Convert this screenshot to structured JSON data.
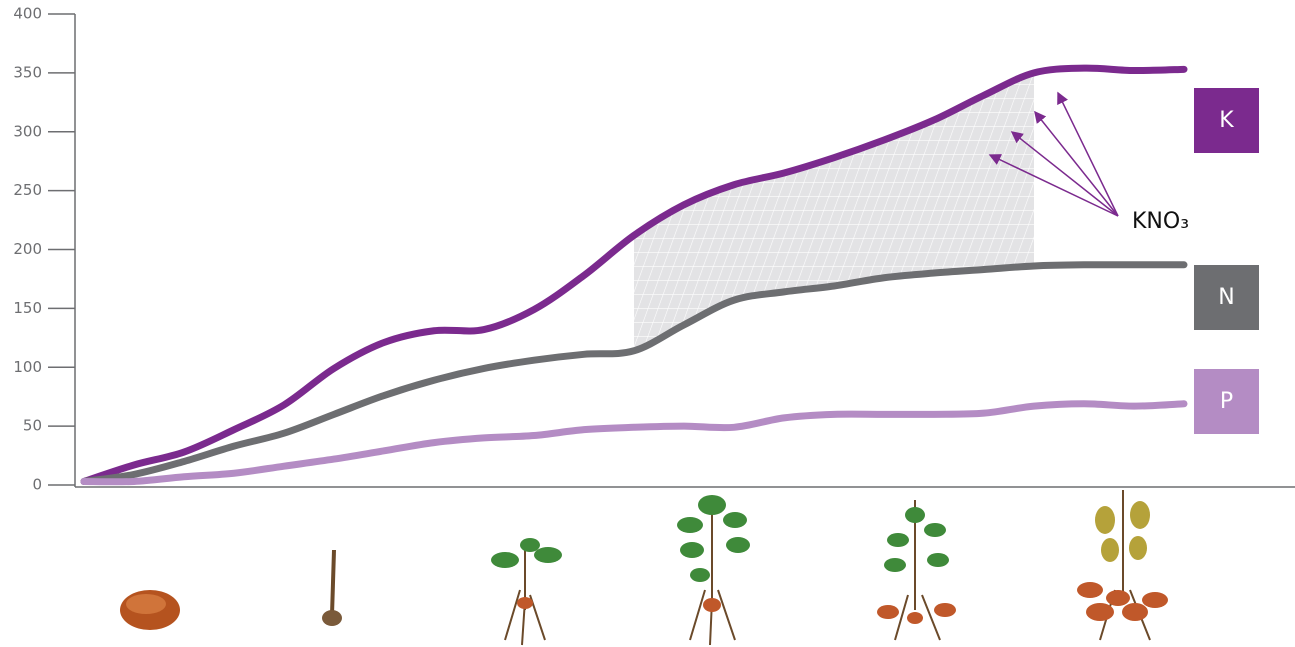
{
  "chart_data": {
    "type": "line",
    "categories": [
      null,
      null,
      null,
      null,
      null,
      null,
      null,
      null,
      null,
      null,
      null,
      null,
      null,
      null,
      null,
      null,
      null,
      null,
      null,
      null,
      null,
      null,
      null
    ],
    "series": [
      {
        "name": "K",
        "color": "#7b2a8e",
        "values": [
          3,
          17,
          28,
          47,
          68,
          99,
          121,
          131,
          132,
          149,
          178,
          212,
          238,
          255,
          265,
          278,
          293,
          310,
          331,
          350,
          354,
          352,
          353
        ]
      },
      {
        "name": "N",
        "color": "#6d6e71",
        "values": [
          3,
          9,
          20,
          33,
          44,
          60,
          76,
          89,
          99,
          106,
          111,
          114,
          136,
          157,
          164,
          169,
          176,
          180,
          183,
          186,
          187,
          187,
          187
        ]
      },
      {
        "name": "P",
        "color": "#b48cc4",
        "values": [
          3,
          3,
          7,
          10,
          16,
          22,
          29,
          36,
          40,
          42,
          47,
          49,
          50,
          49,
          57,
          60,
          60,
          60,
          61,
          67,
          69,
          67,
          69
        ]
      }
    ],
    "ylim": [
      0,
      400
    ],
    "yticks": [
      0,
      50,
      100,
      150,
      200,
      250,
      300,
      350,
      400
    ],
    "annotation": "KNO₃"
  }
}
